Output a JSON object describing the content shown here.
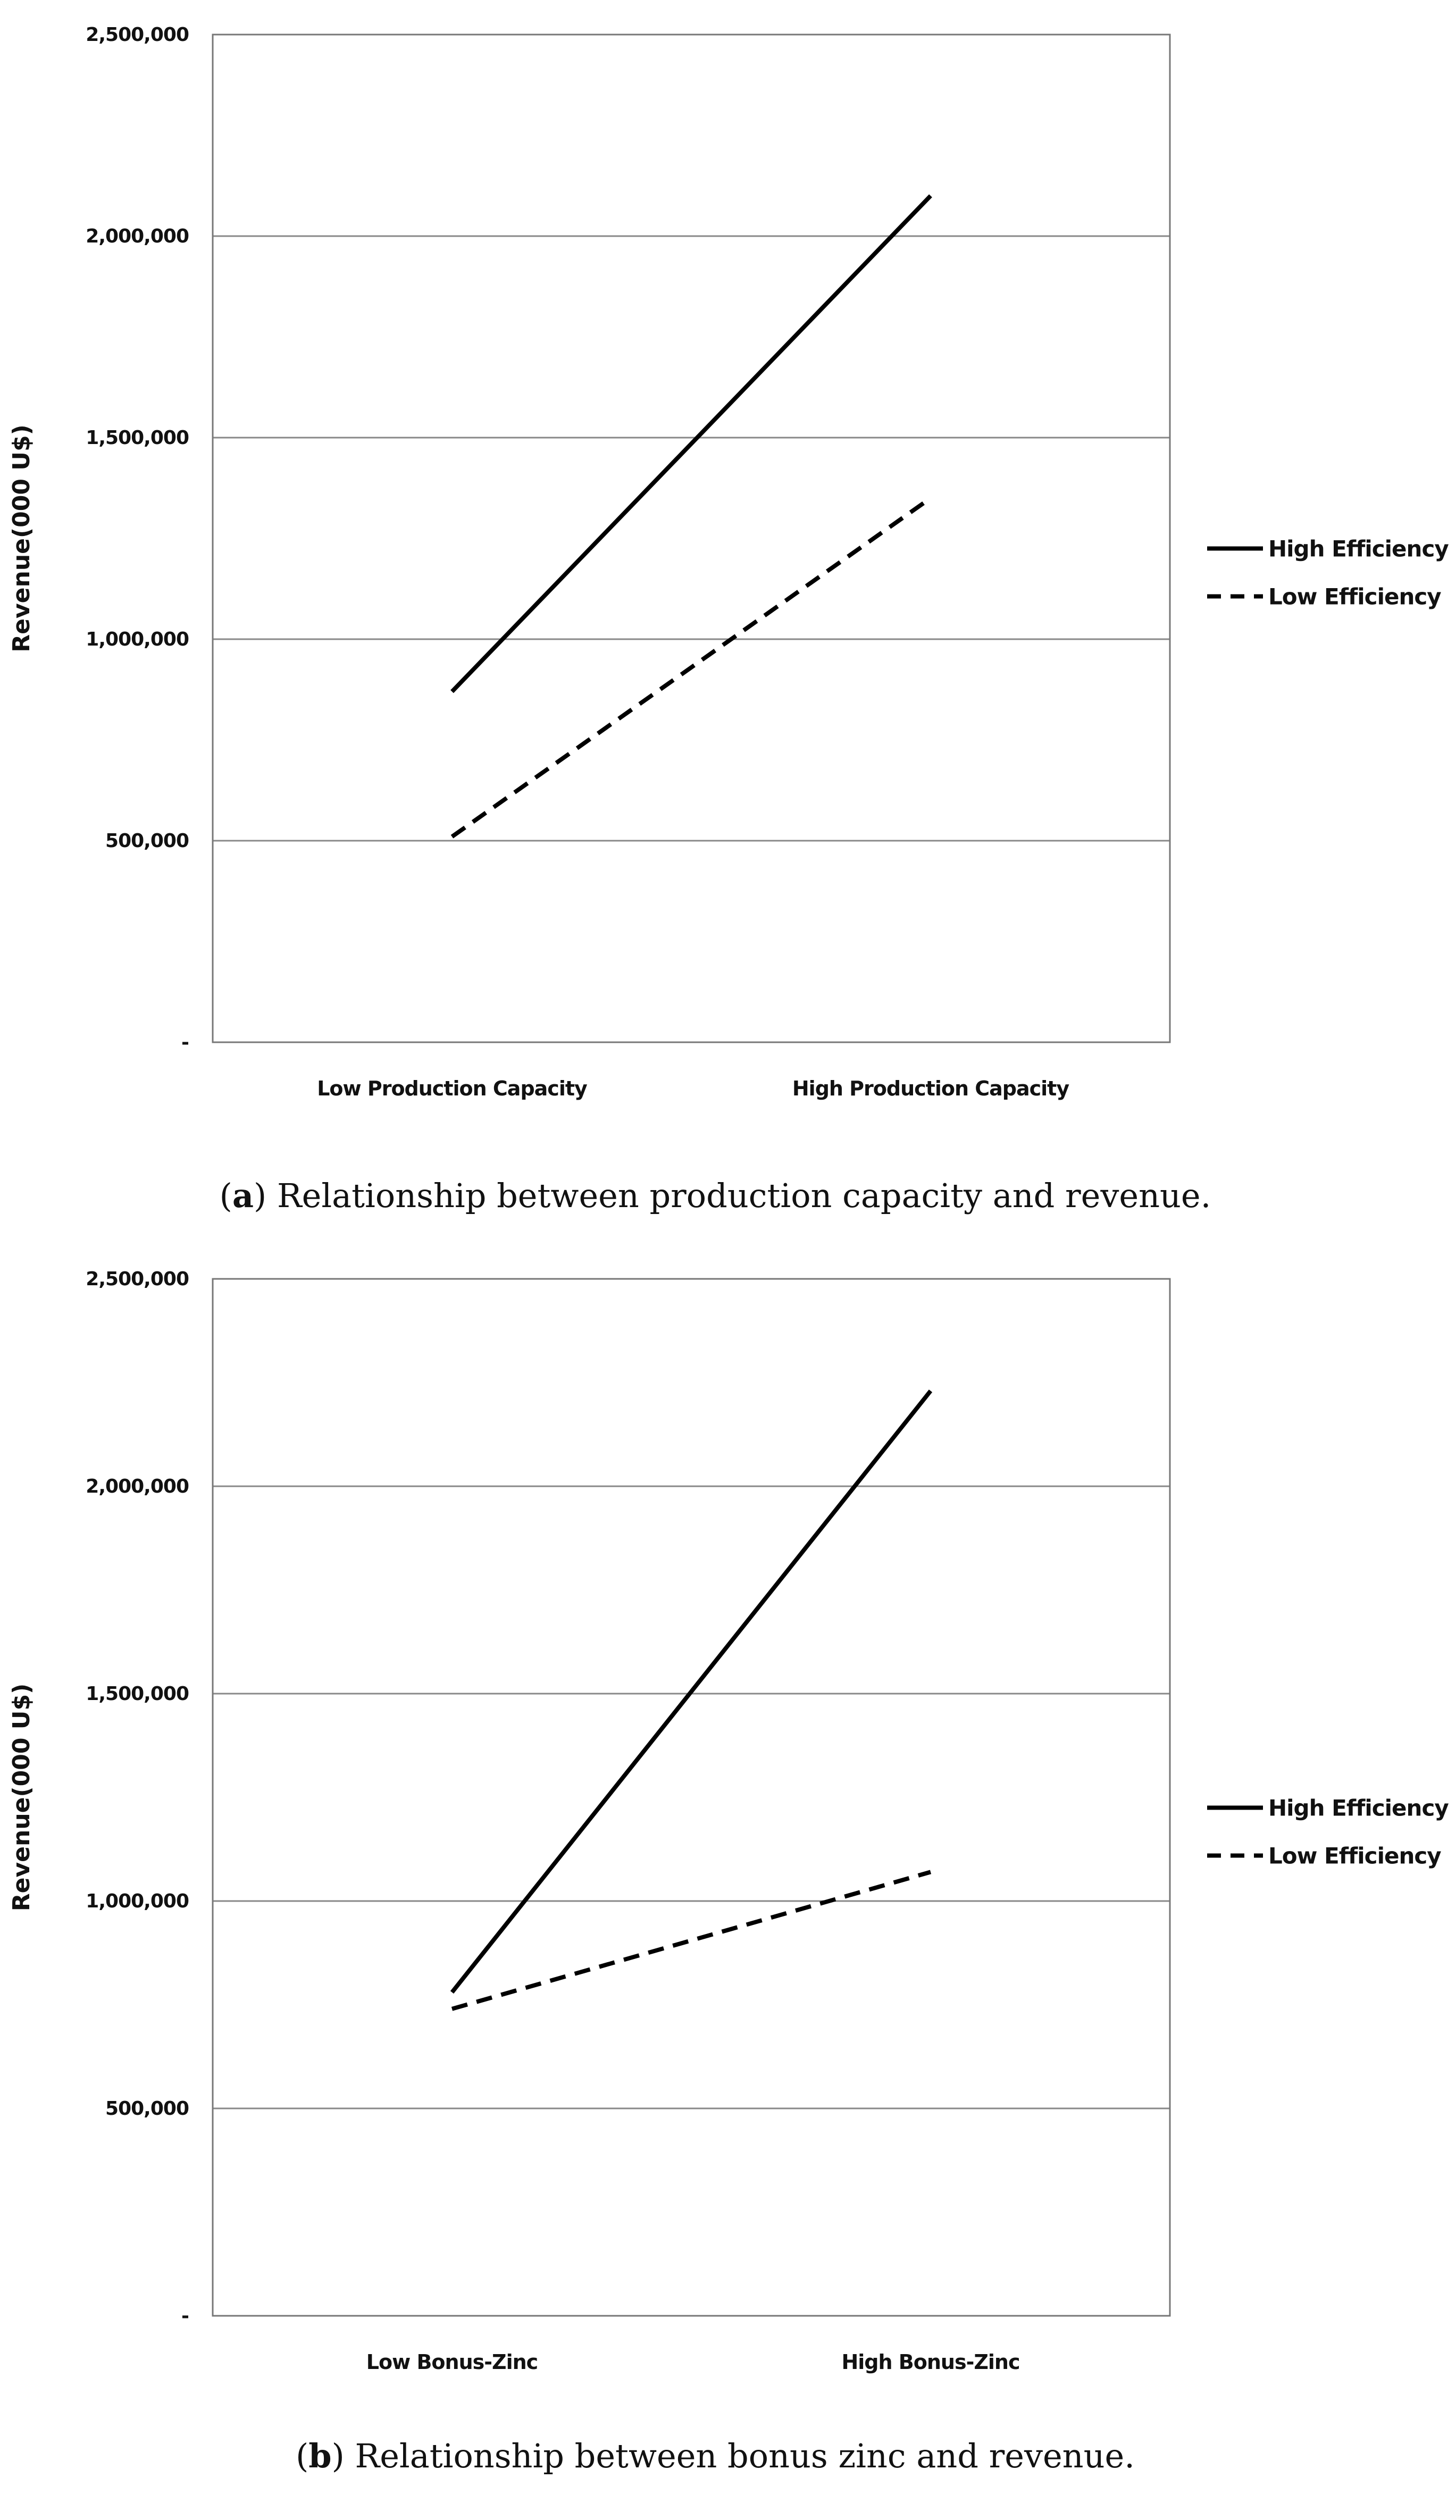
{
  "chart_data": [
    {
      "type": "line",
      "panel": "a",
      "title": "",
      "xlabel": "",
      "ylabel": "Revenue(000 U$)",
      "ylim": [
        0,
        2500000
      ],
      "yticks": [
        0,
        500000,
        1000000,
        1500000,
        2000000,
        2500000
      ],
      "ytick_labels": [
        "-",
        "500,000",
        "1,000,000",
        "1,500,000",
        "2,000,000",
        "2,500,000"
      ],
      "categories": [
        "Low Production Capacity",
        "High Production Capacity"
      ],
      "series": [
        {
          "name": "High Efficiency",
          "style": "solid",
          "values": [
            870000,
            2100000
          ]
        },
        {
          "name": "Low Efficiency",
          "style": "dashed",
          "values": [
            510000,
            1350000
          ]
        }
      ],
      "legend": "right",
      "grid": true,
      "caption": {
        "letter": "a",
        "text": "Relationship between production capacity and revenue."
      }
    },
    {
      "type": "line",
      "panel": "b",
      "title": "",
      "xlabel": "",
      "ylabel": "Revenue(000 U$)",
      "ylim": [
        0,
        2500000
      ],
      "yticks": [
        0,
        500000,
        1000000,
        1500000,
        2000000,
        2500000
      ],
      "ytick_labels": [
        "-",
        "500,000",
        "1,000,000",
        "1,500,000",
        "2,000,000",
        "2,500,000"
      ],
      "categories": [
        "Low Bonus-Zinc",
        "High Bonus-Zinc"
      ],
      "series": [
        {
          "name": "High Efficiency",
          "style": "solid",
          "values": [
            780000,
            2230000
          ]
        },
        {
          "name": "Low Efficiency",
          "style": "dashed",
          "values": [
            740000,
            1070000
          ]
        }
      ],
      "legend": "right",
      "grid": true,
      "caption": {
        "letter": "b",
        "text": "Relationship between bonus zinc and revenue."
      }
    }
  ]
}
